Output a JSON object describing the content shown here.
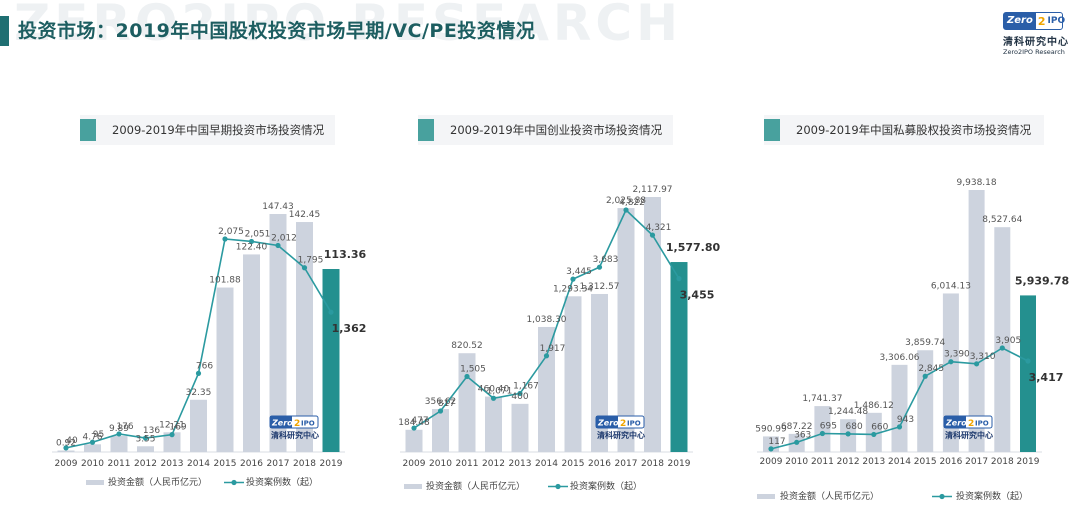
{
  "header": {
    "title": "投资市场：2019年中国股权投资市场早期/VC/PE投资情况",
    "watermark": "ZERO2IPO RESEARCH",
    "logo": {
      "mark_a": "Zero",
      "mark_b": "2",
      "mark_c": "IPO",
      "cn": "清科研究中心",
      "en": "Zero2IPO Research"
    }
  },
  "colors": {
    "bar": "#cdd3de",
    "bar_highlight": "#24908f",
    "line": "#2b9aa0",
    "title": "#1d5e61"
  },
  "chart_watermark": {
    "a": "Zero",
    "b": "2",
    "c": "IPO",
    "cn": "清科研究中心"
  },
  "chart_data": [
    {
      "type": "bar",
      "title": "2009-2019年中国早期投资市场投资情况",
      "categories": [
        "2009",
        "2010",
        "2011",
        "2012",
        "2013",
        "2014",
        "2015",
        "2016",
        "2017",
        "2018",
        "2019"
      ],
      "series": [
        {
          "name": "投资金额（人民币亿元）",
          "type": "bar",
          "values": [
            0.92,
            4.76,
            9.89,
            3.55,
            12.21,
            32.35,
            101.88,
            122.4,
            147.43,
            142.45,
            113.36
          ],
          "labels": [
            "0.92",
            "4.76",
            "9.89",
            "3.55",
            "12.21",
            "32.35",
            "101.88",
            "122.40",
            "147.43",
            "142.45",
            "113.36"
          ]
        },
        {
          "name": "投资案例数（起）",
          "type": "line",
          "values": [
            40,
            95,
            176,
            136,
            169,
            766,
            2075,
            2051,
            2012,
            1795,
            1362
          ],
          "labels": [
            "40",
            "95",
            "176",
            "136",
            "169",
            "766",
            "2,075",
            "2,051",
            "2,012",
            "1,795",
            "1,362"
          ]
        }
      ]
    },
    {
      "type": "bar",
      "title": "2009-2019年中国创业投资市场投资情况",
      "categories": [
        "2009",
        "2010",
        "2011",
        "2012",
        "2013",
        "2014",
        "2015",
        "2016",
        "2017",
        "2018",
        "2019"
      ],
      "series": [
        {
          "name": "投资金额（人民币亿元）",
          "type": "bar",
          "values": [
            184.48,
            356.62,
            820.52,
            460.4,
            400.0,
            1038.3,
            1293.34,
            1312.57,
            2025.88,
            2117.97,
            1577.8
          ],
          "labels": [
            "184.48",
            "356.62",
            "820.52",
            "460.40",
            "400",
            "1,038.30",
            "1,293.34",
            "1,312.57",
            "2,025.88",
            "2,117.97",
            "1,577.80"
          ]
        },
        {
          "name": "投资案例数（起）",
          "type": "line",
          "values": [
            477,
            817,
            1505,
            1071,
            1167,
            1917,
            3445,
            3683,
            4822,
            4321,
            3455
          ],
          "labels": [
            "477",
            "817",
            "1,505",
            "1,071",
            "1,167",
            "1,917",
            "3,445",
            "3,683",
            "4,822",
            "4,321",
            "3,455"
          ]
        }
      ]
    },
    {
      "type": "bar",
      "title": "2009-2019年中国私募股权投资市场投资情况",
      "categories": [
        "2009",
        "2010",
        "2011",
        "2012",
        "2013",
        "2014",
        "2015",
        "2016",
        "2017",
        "2018",
        "2019"
      ],
      "series": [
        {
          "name": "投资金额（人民币亿元）",
          "type": "bar",
          "values": [
            590.99,
            687.22,
            1741.37,
            1244.48,
            1486.12,
            3306.06,
            3859.74,
            6014.13,
            9938.18,
            8527.64,
            5939.78
          ],
          "labels": [
            "590.99",
            "687.22",
            "1,741.37",
            "1,244.48",
            "1,486.12",
            "3,306.06",
            "3,859.74",
            "6,014.13",
            "9,938.18",
            "8,527.64",
            "5,939.78"
          ]
        },
        {
          "name": "投资案例数（起）",
          "type": "line",
          "values": [
            117,
            363,
            695,
            680,
            660,
            943,
            2845,
            3390,
            3310,
            3905,
            3417
          ],
          "labels": [
            "117",
            "363",
            "695",
            "680",
            "660",
            "943",
            "2,845",
            "3,390",
            "3,310",
            "3,905",
            "3,417"
          ]
        }
      ]
    }
  ]
}
